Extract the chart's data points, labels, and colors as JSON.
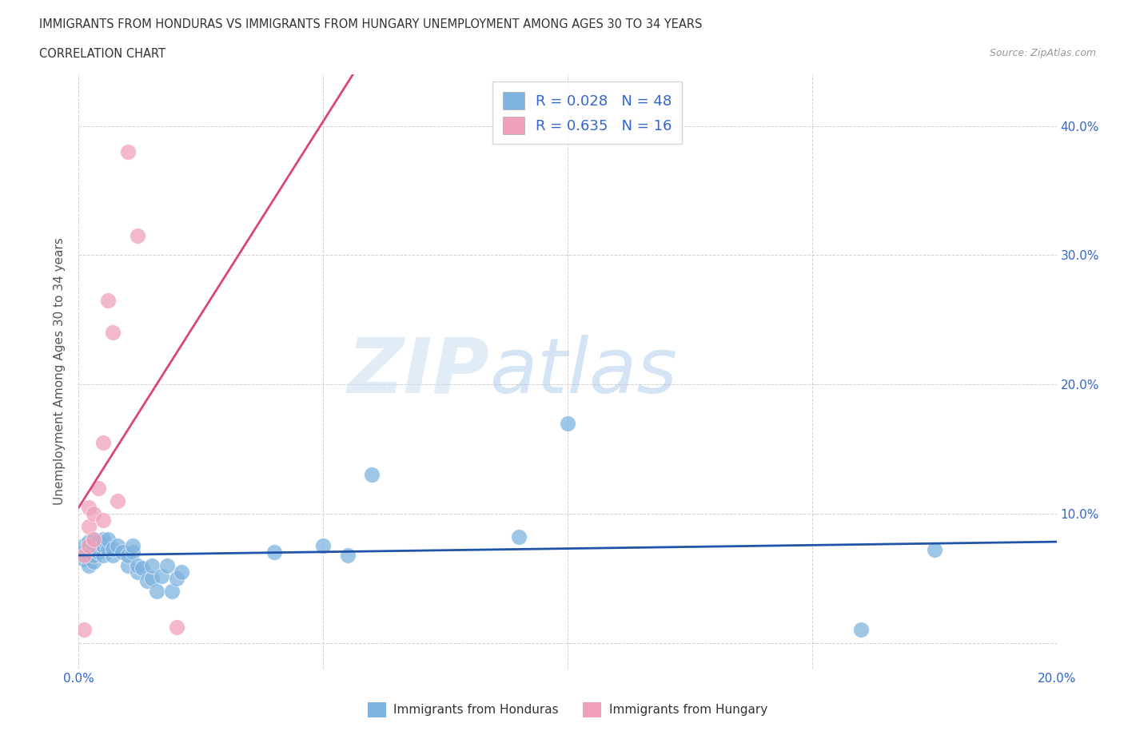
{
  "title_line1": "IMMIGRANTS FROM HONDURAS VS IMMIGRANTS FROM HUNGARY UNEMPLOYMENT AMONG AGES 30 TO 34 YEARS",
  "title_line2": "CORRELATION CHART",
  "source_text": "Source: ZipAtlas.com",
  "ylabel": "Unemployment Among Ages 30 to 34 years",
  "watermark": "ZIPatlas",
  "xlim": [
    0.0,
    0.2
  ],
  "ylim": [
    -0.02,
    0.44
  ],
  "xticks": [
    0.0,
    0.05,
    0.1,
    0.15,
    0.2
  ],
  "yticks": [
    0.0,
    0.1,
    0.2,
    0.3,
    0.4
  ],
  "legend_entries": [
    {
      "label": "Immigrants from Honduras",
      "color": "#7eb3e0",
      "R": 0.028,
      "N": 48
    },
    {
      "label": "Immigrants from Hungary",
      "color": "#f0a0b8",
      "R": 0.635,
      "N": 16
    }
  ],
  "honduras_color": "#7eb3e0",
  "hungary_color": "#f0a0b8",
  "honduras_line_color": "#2255aa",
  "hungary_line_color": "#dd4477",
  "honduras_x": [
    0.001,
    0.001,
    0.001,
    0.002,
    0.002,
    0.002,
    0.002,
    0.003,
    0.003,
    0.003,
    0.003,
    0.003,
    0.004,
    0.004,
    0.004,
    0.005,
    0.005,
    0.005,
    0.006,
    0.006,
    0.007,
    0.007,
    0.008,
    0.009,
    0.01,
    0.01,
    0.011,
    0.011,
    0.012,
    0.012,
    0.013,
    0.014,
    0.015,
    0.015,
    0.016,
    0.017,
    0.018,
    0.019,
    0.02,
    0.021,
    0.04,
    0.05,
    0.055,
    0.06,
    0.09,
    0.1,
    0.16,
    0.175
  ],
  "honduras_y": [
    0.065,
    0.07,
    0.075,
    0.06,
    0.068,
    0.072,
    0.078,
    0.063,
    0.068,
    0.072,
    0.076,
    0.08,
    0.07,
    0.073,
    0.078,
    0.068,
    0.075,
    0.08,
    0.073,
    0.08,
    0.068,
    0.073,
    0.075,
    0.07,
    0.06,
    0.068,
    0.07,
    0.075,
    0.055,
    0.06,
    0.058,
    0.048,
    0.05,
    0.06,
    0.04,
    0.052,
    0.06,
    0.04,
    0.05,
    0.055,
    0.07,
    0.075,
    0.068,
    0.13,
    0.082,
    0.17,
    0.01,
    0.072
  ],
  "hungary_x": [
    0.001,
    0.001,
    0.002,
    0.002,
    0.002,
    0.003,
    0.003,
    0.004,
    0.005,
    0.005,
    0.006,
    0.007,
    0.008,
    0.01,
    0.012,
    0.02
  ],
  "hungary_y": [
    0.01,
    0.068,
    0.075,
    0.09,
    0.105,
    0.08,
    0.1,
    0.12,
    0.155,
    0.095,
    0.265,
    0.24,
    0.11,
    0.38,
    0.315,
    0.012
  ],
  "background_color": "#ffffff",
  "grid_color": "#cccccc",
  "title_color": "#333333",
  "axis_color": "#3366cc"
}
